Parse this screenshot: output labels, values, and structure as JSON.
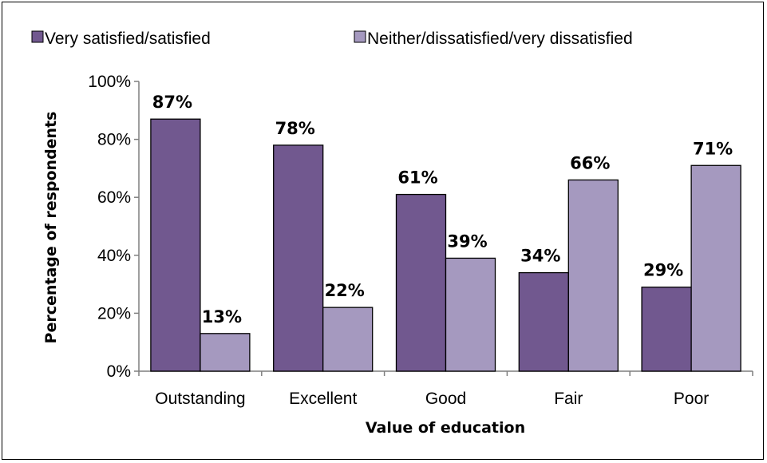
{
  "chart_data": {
    "type": "bar",
    "categories": [
      "Outstanding",
      "Excellent",
      "Good",
      "Fair",
      "Poor"
    ],
    "series": [
      {
        "name": "Very satisfied/satisfied",
        "values": [
          87,
          78,
          61,
          34,
          29
        ],
        "color": "#71588f"
      },
      {
        "name": "Neither/dissatisfied/very dissatisfied",
        "values": [
          13,
          22,
          39,
          66,
          71
        ],
        "color": "#a599bf"
      }
    ],
    "data_labels": [
      [
        "87%",
        "78%",
        "61%",
        "34%",
        "29%"
      ],
      [
        "13%",
        "22%",
        "39%",
        "66%",
        "71%"
      ]
    ],
    "xlabel": "Value of education",
    "ylabel": "Percentage of respondents",
    "ylim": [
      0,
      100
    ],
    "yticks": [
      "0%",
      "20%",
      "40%",
      "60%",
      "80%",
      "100%"
    ],
    "grid": false,
    "legend_position": "top"
  }
}
